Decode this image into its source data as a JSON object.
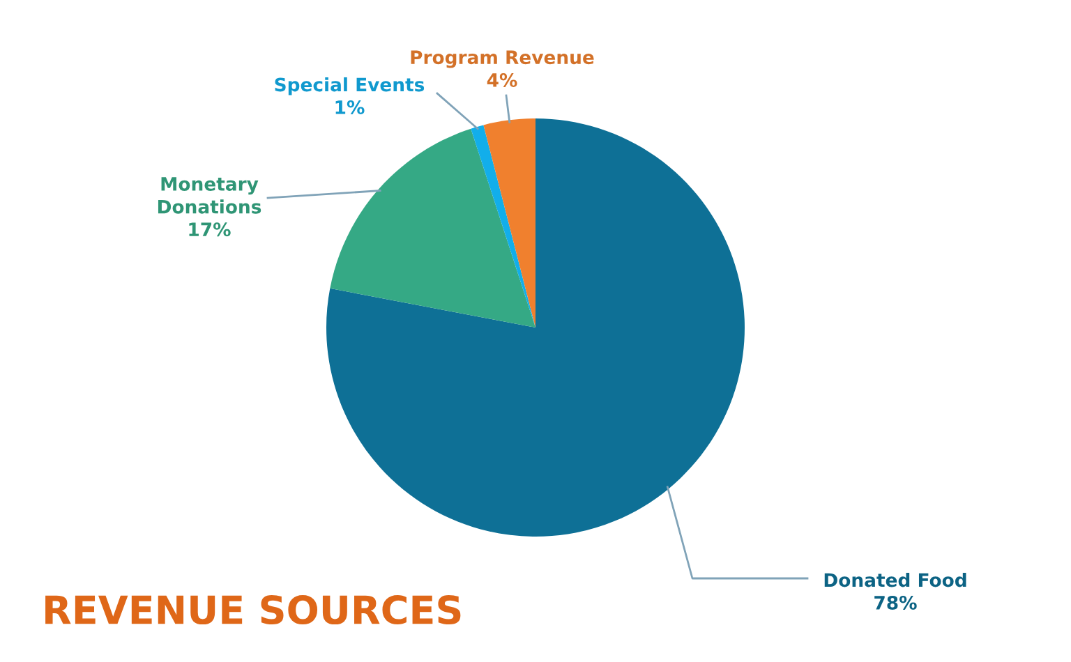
{
  "chart_data": {
    "type": "pie",
    "title": "REVENUE SOURCES",
    "categories": [
      "Donated Food",
      "Monetary Donations",
      "Special Events",
      "Program Revenue"
    ],
    "values": [
      78,
      17,
      1,
      4
    ],
    "value_labels": [
      "78%",
      "17%",
      "1%",
      "4%"
    ],
    "colors": [
      "#0e7096",
      "#35a985",
      "#12aeea",
      "#f0802e"
    ]
  }
}
